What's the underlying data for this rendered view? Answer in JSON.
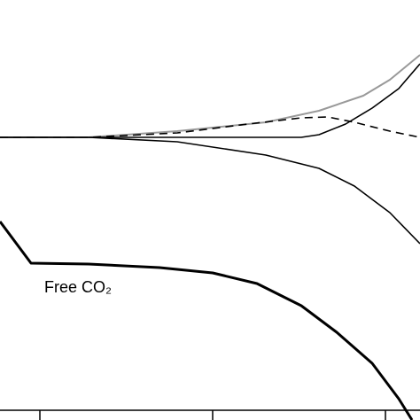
{
  "chart_data": {
    "type": "line",
    "xlim": [
      0,
      474
    ],
    "ylim": [
      0,
      474
    ],
    "xticks": [
      45,
      240,
      435
    ],
    "grid": false,
    "series": [
      {
        "color": "#999999",
        "linestyle": "solid",
        "linewidth": 2,
        "x": [
          0,
          100,
          200,
          300,
          360,
          410,
          440,
          474
        ],
        "values": [
          319,
          319,
          326,
          336,
          349,
          366,
          384,
          412
        ]
      },
      {
        "color": "#000000",
        "linestyle": "solid",
        "linewidth": 1.6,
        "x": [
          0,
          340,
          360,
          390,
          420,
          450,
          474
        ],
        "values": [
          319,
          319,
          322,
          334,
          352,
          374,
          402
        ]
      },
      {
        "color": "#000000",
        "linestyle": "dashed",
        "linewidth": 1.6,
        "x": [
          0,
          100,
          200,
          280,
          340,
          370,
          400,
          440,
          474
        ],
        "values": [
          319,
          319,
          324,
          334,
          341,
          342,
          336,
          326,
          319
        ]
      },
      {
        "color": "#000000",
        "linestyle": "solid",
        "linewidth": 1.6,
        "x": [
          0,
          100,
          200,
          300,
          360,
          400,
          440,
          474
        ],
        "values": [
          319,
          319,
          314,
          299,
          284,
          264,
          234,
          199
        ]
      },
      {
        "name": "Free CO₂",
        "color": "#000000",
        "linestyle": "solid",
        "linewidth": 3,
        "x": [
          0,
          35,
          100,
          180,
          240,
          290,
          340,
          380,
          420,
          450,
          465
        ],
        "values": [
          224,
          177,
          176,
          172,
          166,
          154,
          129,
          99,
          64,
          24,
          0
        ]
      }
    ]
  }
}
